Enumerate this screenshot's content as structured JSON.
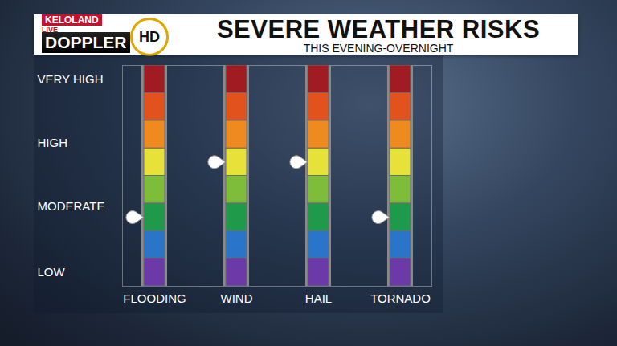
{
  "chart_data": {
    "type": "risk_meter",
    "title": "SEVERE WEATHER RISKS",
    "subtitle": "THIS EVENING-OVERNIGHT",
    "logo": [
      "KELOLAND",
      "LIVE",
      "DOPPLER",
      "HD"
    ],
    "categories": [
      "FLOODING",
      "WIND",
      "HAIL",
      "TORNADO"
    ],
    "values": [
      2.5,
      4.5,
      4.5,
      2.5
    ],
    "ylim": [
      0,
      8
    ],
    "yticks": [
      {
        "value": 0.5,
        "label": "LOW"
      },
      {
        "value": 2.9,
        "label": "MODERATE"
      },
      {
        "value": 5.2,
        "label": "HIGH"
      },
      {
        "value": 7.5,
        "label": "VERY HIGH"
      }
    ],
    "bands": [
      {
        "from": 0,
        "to": 1,
        "color": "#6b3aa8"
      },
      {
        "from": 1,
        "to": 2,
        "color": "#2a74c9"
      },
      {
        "from": 2,
        "to": 3,
        "color": "#1e9a4a"
      },
      {
        "from": 3,
        "to": 4,
        "color": "#7dbd3a"
      },
      {
        "from": 4,
        "to": 5,
        "color": "#e6e23a"
      },
      {
        "from": 5,
        "to": 6,
        "color": "#ef8a1f"
      },
      {
        "from": 6,
        "to": 7,
        "color": "#e2521d"
      },
      {
        "from": 7,
        "to": 8,
        "color": "#a01c22"
      }
    ],
    "marker": "teardrop",
    "grid": false
  }
}
